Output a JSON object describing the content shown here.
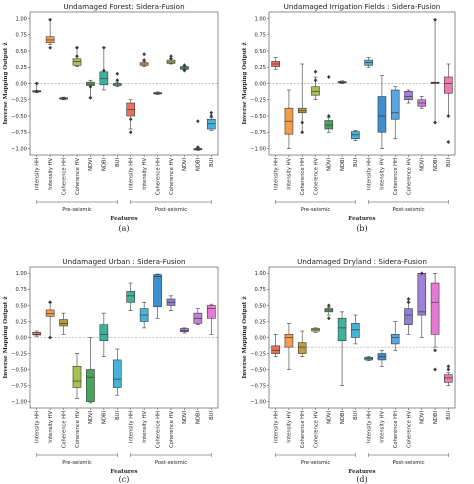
{
  "chart_data": [
    {
      "type": "box",
      "title": "Undamaged Forest: Sidera-Fusion",
      "ylabel": "Inverse Mapping Output ẑ",
      "xlabel": "Features",
      "caption": "(a)",
      "ylim": [
        -1.1,
        1.1
      ],
      "yticks": [
        -1.0,
        -0.75,
        -0.5,
        -0.25,
        0.0,
        0.25,
        0.5,
        0.75,
        1.0
      ],
      "reference_line": 0.0,
      "categories": [
        "Intensity HH",
        "Intensity HV",
        "Coherence HH",
        "Coherence HV",
        "NDVI",
        "NDBI",
        "BUI",
        "Intensity HH",
        "Intensity HV",
        "Coherence HH",
        "Coherence HV",
        "NDVI",
        "NDBI",
        "BUI"
      ],
      "groups": [
        {
          "name": "Pre-seismic",
          "from": 0,
          "to": 6
        },
        {
          "name": "Post-seismic",
          "from": 7,
          "to": 13
        }
      ],
      "colors": [
        "#e7735f",
        "#f39c4a",
        "#b8a040",
        "#a8c052",
        "#47a45b",
        "#3db39b",
        "#48b2d8",
        "#e7735f",
        "#f39c4a",
        "#b8a040",
        "#a8c052",
        "#47a45b",
        "#3db39b",
        "#48b2d8"
      ],
      "boxes": [
        {
          "q1": -0.13,
          "med": -0.12,
          "q3": -0.11,
          "wlo": -0.14,
          "whi": 0.0,
          "fl": [
            -0.12,
            0.0
          ]
        },
        {
          "q1": 0.63,
          "med": 0.67,
          "q3": 0.72,
          "wlo": 0.6,
          "whi": 0.98,
          "fl": [
            0.98,
            0.55
          ]
        },
        {
          "q1": -0.24,
          "med": -0.23,
          "q3": -0.22,
          "wlo": -0.25,
          "whi": -0.21,
          "fl": []
        },
        {
          "q1": 0.28,
          "med": 0.34,
          "q3": 0.38,
          "wlo": 0.26,
          "whi": 0.55,
          "fl": [
            0.55,
            0.42
          ]
        },
        {
          "q1": -0.03,
          "med": -0.02,
          "q3": 0.02,
          "wlo": -0.22,
          "whi": 0.05,
          "fl": [
            -0.22,
            -0.05
          ]
        },
        {
          "q1": -0.02,
          "med": 0.08,
          "q3": 0.18,
          "wlo": -0.1,
          "whi": 0.55,
          "fl": [
            0.55,
            0.2
          ]
        },
        {
          "q1": -0.03,
          "med": -0.02,
          "q3": 0.0,
          "wlo": -0.05,
          "whi": 0.02,
          "fl": [
            0.15,
            0.05
          ]
        },
        {
          "q1": -0.5,
          "med": -0.4,
          "q3": -0.3,
          "wlo": -0.7,
          "whi": -0.25,
          "fl": [
            -0.75,
            -0.55
          ]
        },
        {
          "q1": 0.28,
          "med": 0.3,
          "q3": 0.32,
          "wlo": 0.26,
          "whi": 0.34,
          "fl": [
            0.45,
            0.36
          ]
        },
        {
          "q1": -0.16,
          "med": -0.15,
          "q3": -0.14,
          "wlo": -0.17,
          "whi": -0.13,
          "fl": []
        },
        {
          "q1": 0.31,
          "med": 0.33,
          "q3": 0.36,
          "wlo": 0.3,
          "whi": 0.38,
          "fl": [
            0.42,
            0.38
          ]
        },
        {
          "q1": 0.22,
          "med": 0.24,
          "q3": 0.26,
          "wlo": 0.21,
          "whi": 0.27,
          "fl": [
            0.28,
            0.2
          ]
        },
        {
          "q1": -1.02,
          "med": -1.01,
          "q3": -1.0,
          "wlo": -1.03,
          "whi": -0.99,
          "fl": [
            -0.98,
            -0.58
          ]
        },
        {
          "q1": -0.7,
          "med": -0.62,
          "q3": -0.55,
          "wlo": -0.72,
          "whi": -0.52,
          "fl": [
            -0.5,
            -0.45
          ]
        }
      ]
    },
    {
      "type": "box",
      "title": "Undamaged Irrigation Fields : Sidera-Fusion",
      "ylabel": "Inverse Mapping Output ẑ",
      "xlabel": "Features",
      "caption": "(b)",
      "ylim": [
        -1.1,
        1.1
      ],
      "yticks": [
        -1.0,
        -0.75,
        -0.5,
        -0.25,
        0.0,
        0.25,
        0.5,
        0.75,
        1.0
      ],
      "reference_line": 0.0,
      "categories": [
        "Intensity HH",
        "Intensity HV",
        "Coherence HH",
        "Coherence HV",
        "NDVI",
        "NDBI",
        "BUI",
        "Intensity HH",
        "Intensity HV",
        "Coherence HH",
        "Coherence HV",
        "NDVI",
        "NDBI",
        "BUI"
      ],
      "groups": [
        {
          "name": "Pre-seismic",
          "from": 0,
          "to": 6
        },
        {
          "name": "Post-seismic",
          "from": 7,
          "to": 13
        }
      ],
      "colors": [
        "#e7735f",
        "#f39c4a",
        "#b8a040",
        "#a8c052",
        "#47a45b",
        "#3db39b",
        "#48b2d8",
        "#48b2d8",
        "#3e8fd0",
        "#5aa5e0",
        "#a07fd6",
        "#c77fd6",
        "#e57ad6",
        "#f07ab0"
      ],
      "boxes": [
        {
          "q1": 0.26,
          "med": 0.3,
          "q3": 0.34,
          "wlo": 0.22,
          "whi": 0.4,
          "fl": []
        },
        {
          "q1": -0.78,
          "med": -0.58,
          "q3": -0.38,
          "wlo": -1.0,
          "whi": -0.1,
          "fl": []
        },
        {
          "q1": -0.45,
          "med": -0.42,
          "q3": -0.38,
          "wlo": -0.75,
          "whi": 0.3,
          "fl": [
            -0.75,
            -0.6
          ]
        },
        {
          "q1": -0.18,
          "med": -0.12,
          "q3": -0.05,
          "wlo": -0.25,
          "whi": 0.1,
          "fl": [
            0.18,
            0.05
          ]
        },
        {
          "q1": -0.7,
          "med": -0.64,
          "q3": -0.57,
          "wlo": -0.75,
          "whi": -0.52,
          "fl": [
            -0.5,
            0.1
          ]
        },
        {
          "q1": 0.01,
          "med": 0.02,
          "q3": 0.03,
          "wlo": 0.0,
          "whi": 0.04,
          "fl": []
        },
        {
          "q1": -0.85,
          "med": -0.79,
          "q3": -0.74,
          "wlo": -0.88,
          "whi": -0.72,
          "fl": []
        },
        {
          "q1": 0.28,
          "med": 0.32,
          "q3": 0.36,
          "wlo": 0.25,
          "whi": 0.4,
          "fl": []
        },
        {
          "q1": -0.75,
          "med": -0.5,
          "q3": -0.2,
          "wlo": -1.0,
          "whi": 0.12,
          "fl": []
        },
        {
          "q1": -0.55,
          "med": -0.45,
          "q3": -0.1,
          "wlo": -0.85,
          "whi": -0.05,
          "fl": []
        },
        {
          "q1": -0.25,
          "med": -0.2,
          "q3": -0.12,
          "wlo": -0.3,
          "whi": -0.1,
          "fl": []
        },
        {
          "q1": -0.35,
          "med": -0.3,
          "q3": -0.25,
          "wlo": -0.38,
          "whi": -0.2,
          "fl": []
        },
        {
          "q1": 0.0,
          "med": 0.01,
          "q3": 0.02,
          "wlo": -0.6,
          "whi": 0.98,
          "fl": [
            -0.6,
            0.98
          ]
        },
        {
          "q1": -0.15,
          "med": 0.0,
          "q3": 0.1,
          "wlo": -0.5,
          "whi": 0.3,
          "fl": [
            -0.5,
            -0.9
          ]
        }
      ]
    },
    {
      "type": "box",
      "title": "Undamaged Urban : Sidera-Fusion",
      "ylabel": "Inverse Mapping Output ẑ",
      "xlabel": "Features",
      "caption": "(c)",
      "ylim": [
        -1.1,
        1.1
      ],
      "yticks": [
        -1.0,
        -0.75,
        -0.5,
        -0.25,
        0.0,
        0.25,
        0.5,
        0.75,
        1.0
      ],
      "reference_line": 0.0,
      "categories": [
        "Intensity HH",
        "Intensity HV",
        "Coherence HH",
        "Coherence HV",
        "NDVI",
        "NDBI",
        "BUI",
        "Intensity HH",
        "Intensity HV",
        "Coherence HH",
        "Coherence HV",
        "NDVI",
        "NDBI",
        "BUI"
      ],
      "groups": [
        {
          "name": "Pre-seismic",
          "from": 0,
          "to": 6
        },
        {
          "name": "Post-seismic",
          "from": 7,
          "to": 13
        }
      ],
      "colors": [
        "#e7735f",
        "#f39c4a",
        "#b8a040",
        "#a8c052",
        "#47a45b",
        "#3db39b",
        "#48b2d8",
        "#3db39b",
        "#48b2d8",
        "#3e8fd0",
        "#8b7fd6",
        "#a07fd6",
        "#c77fd6",
        "#e57ad6"
      ],
      "boxes": [
        {
          "q1": 0.04,
          "med": 0.05,
          "q3": 0.08,
          "wlo": 0.02,
          "whi": 0.1,
          "fl": []
        },
        {
          "q1": 0.33,
          "med": 0.37,
          "q3": 0.43,
          "wlo": 0.0,
          "whi": 0.55,
          "fl": [
            0.55,
            0.0
          ]
        },
        {
          "q1": 0.18,
          "med": 0.22,
          "q3": 0.28,
          "wlo": 0.05,
          "whi": 0.38,
          "fl": []
        },
        {
          "q1": -0.78,
          "med": -0.68,
          "q3": -0.45,
          "wlo": -0.95,
          "whi": -0.25,
          "fl": []
        },
        {
          "q1": -1.0,
          "med": -0.62,
          "q3": -0.5,
          "wlo": -1.02,
          "whi": 0.0,
          "fl": []
        },
        {
          "q1": -0.05,
          "med": 0.05,
          "q3": 0.2,
          "wlo": -0.3,
          "whi": 0.38,
          "fl": []
        },
        {
          "q1": -0.78,
          "med": -0.65,
          "q3": -0.35,
          "wlo": -0.9,
          "whi": -0.18,
          "fl": []
        },
        {
          "q1": 0.55,
          "med": 0.65,
          "q3": 0.72,
          "wlo": 0.42,
          "whi": 0.85,
          "fl": []
        },
        {
          "q1": 0.25,
          "med": 0.35,
          "q3": 0.45,
          "wlo": 0.15,
          "whi": 0.55,
          "fl": []
        },
        {
          "q1": 0.48,
          "med": 0.95,
          "q3": 0.98,
          "wlo": 0.3,
          "whi": 0.99,
          "fl": []
        },
        {
          "q1": 0.5,
          "med": 0.55,
          "q3": 0.6,
          "wlo": 0.42,
          "whi": 0.65,
          "fl": []
        },
        {
          "q1": 0.09,
          "med": 0.11,
          "q3": 0.14,
          "wlo": 0.07,
          "whi": 0.15,
          "fl": []
        },
        {
          "q1": 0.22,
          "med": 0.3,
          "q3": 0.38,
          "wlo": 0.2,
          "whi": 0.45,
          "fl": []
        },
        {
          "q1": 0.3,
          "med": 0.45,
          "q3": 0.5,
          "wlo": 0.05,
          "whi": 0.52,
          "fl": []
        }
      ]
    },
    {
      "type": "box",
      "title": "Undamaged Dryland : Sidera-Fusion",
      "ylabel": "Inverse Mapping Output ẑ",
      "xlabel": "Features",
      "caption": "(d)",
      "ylim": [
        -1.1,
        1.1
      ],
      "yticks": [
        -1.0,
        -0.75,
        -0.5,
        -0.25,
        0.0,
        0.25,
        0.5,
        0.75,
        1.0
      ],
      "reference_line": -0.15,
      "categories": [
        "Intensity HH",
        "Intensity HV",
        "Coherence HH",
        "Coherence HV",
        "NDVI",
        "NDBI",
        "BUI",
        "Intensity HH",
        "Intensity HV",
        "Coherence HH",
        "Coherence HV",
        "NDVI",
        "NDBI",
        "BUI"
      ],
      "groups": [
        {
          "name": "Pre-seismic",
          "from": 0,
          "to": 6
        },
        {
          "name": "Post-seismic",
          "from": 7,
          "to": 13
        }
      ],
      "colors": [
        "#e7735f",
        "#f39c4a",
        "#b8a040",
        "#a8c052",
        "#47a45b",
        "#3db39b",
        "#48b2d8",
        "#48b2d8",
        "#3e8fd0",
        "#5aa5e0",
        "#8b7fd6",
        "#a07fd6",
        "#e57ad6",
        "#f07ab0"
      ],
      "boxes": [
        {
          "q1": -0.25,
          "med": -0.2,
          "q3": -0.13,
          "wlo": -0.3,
          "whi": 0.05,
          "fl": []
        },
        {
          "q1": -0.15,
          "med": 0.0,
          "q3": 0.05,
          "wlo": -0.5,
          "whi": 0.22,
          "fl": []
        },
        {
          "q1": -0.25,
          "med": -0.15,
          "q3": -0.08,
          "wlo": -0.3,
          "whi": 0.1,
          "fl": []
        },
        {
          "q1": 0.1,
          "med": 0.12,
          "q3": 0.14,
          "wlo": 0.08,
          "whi": 0.15,
          "fl": []
        },
        {
          "q1": 0.4,
          "med": 0.43,
          "q3": 0.45,
          "wlo": 0.35,
          "whi": 0.47,
          "fl": [
            0.3,
            0.5
          ]
        },
        {
          "q1": -0.05,
          "med": 0.15,
          "q3": 0.3,
          "wlo": -0.75,
          "whi": 0.4,
          "fl": []
        },
        {
          "q1": 0.0,
          "med": 0.12,
          "q3": 0.22,
          "wlo": -0.1,
          "whi": 0.35,
          "fl": []
        },
        {
          "q1": -0.35,
          "med": -0.33,
          "q3": -0.31,
          "wlo": -0.36,
          "whi": -0.3,
          "fl": []
        },
        {
          "q1": -0.35,
          "med": -0.3,
          "q3": -0.25,
          "wlo": -0.45,
          "whi": -0.2,
          "fl": []
        },
        {
          "q1": -0.1,
          "med": 0.0,
          "q3": 0.05,
          "wlo": -0.2,
          "whi": 0.25,
          "fl": []
        },
        {
          "q1": 0.2,
          "med": 0.35,
          "q3": 0.45,
          "wlo": 0.05,
          "whi": 0.55,
          "fl": [
            0.55,
            0.6
          ]
        },
        {
          "q1": 0.35,
          "med": 0.4,
          "q3": 1.0,
          "wlo": 0.0,
          "whi": 1.0,
          "fl": [
            1.0
          ]
        },
        {
          "q1": 0.05,
          "med": 0.55,
          "q3": 0.85,
          "wlo": -0.15,
          "whi": 1.0,
          "fl": [
            -0.2,
            -0.5
          ]
        },
        {
          "q1": -0.7,
          "med": -0.63,
          "q3": -0.58,
          "wlo": -0.75,
          "whi": -0.55,
          "fl": [
            -0.5,
            -0.45
          ]
        }
      ]
    }
  ]
}
